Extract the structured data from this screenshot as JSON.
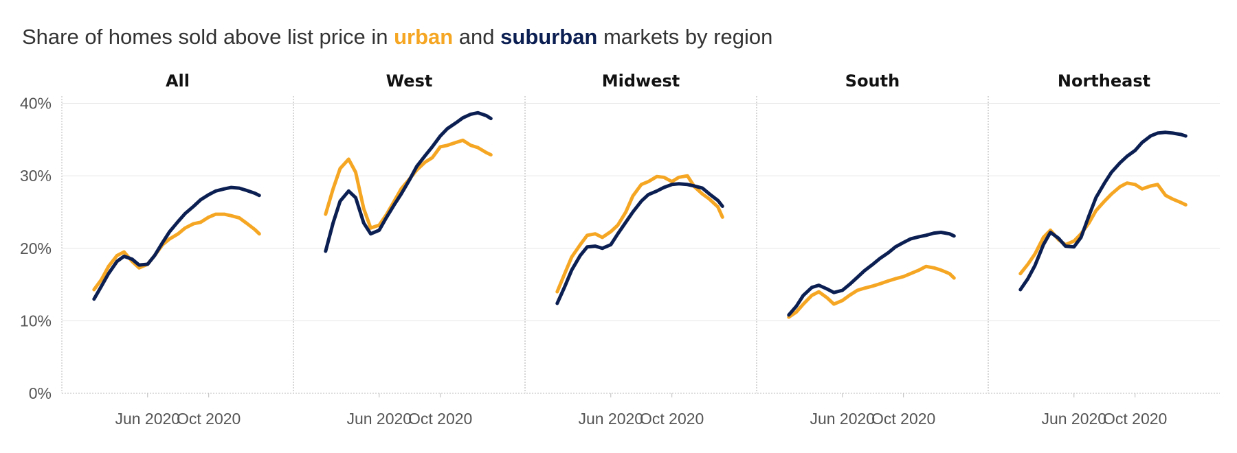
{
  "title": {
    "prefix": "Share of homes sold above list price in ",
    "urban_word": "urban",
    "middle": " and ",
    "suburban_word": "suburban",
    "suffix": " markets by region"
  },
  "colors": {
    "urban": "#f5a623",
    "suburban": "#0c1f52",
    "grid": "#e6e6e6",
    "divider": "#bbbbbb"
  },
  "chart_data": {
    "type": "line",
    "y_ticks": [
      {
        "value": 0,
        "label": "0%"
      },
      {
        "value": 10,
        "label": "10%"
      },
      {
        "value": 20,
        "label": "20%"
      },
      {
        "value": 30,
        "label": "30%"
      },
      {
        "value": 40,
        "label": "40%"
      }
    ],
    "ylim": [
      0,
      41
    ],
    "x_ticks": [
      {
        "date": "2020-06-01",
        "label": "Jun 2020"
      },
      {
        "date": "2020-10-01",
        "label": "Oct 2020"
      }
    ],
    "xlim": [
      "2020-01-01",
      "2021-02-28"
    ],
    "series_names": [
      "urban",
      "suburban"
    ],
    "panels": [
      {
        "name": "All",
        "urban": [
          [
            "2020-02-15",
            14.3
          ],
          [
            "2020-03-01",
            15.7
          ],
          [
            "2020-03-15",
            17.5
          ],
          [
            "2020-04-01",
            19.0
          ],
          [
            "2020-04-15",
            19.5
          ],
          [
            "2020-05-01",
            18.2
          ],
          [
            "2020-05-15",
            17.3
          ],
          [
            "2020-06-01",
            17.8
          ],
          [
            "2020-06-15",
            19.0
          ],
          [
            "2020-07-01",
            20.5
          ],
          [
            "2020-07-15",
            21.3
          ],
          [
            "2020-08-01",
            22.0
          ],
          [
            "2020-08-15",
            22.8
          ],
          [
            "2020-09-01",
            23.4
          ],
          [
            "2020-09-15",
            23.6
          ],
          [
            "2020-10-01",
            24.3
          ],
          [
            "2020-10-15",
            24.7
          ],
          [
            "2020-11-01",
            24.7
          ],
          [
            "2020-11-15",
            24.5
          ],
          [
            "2020-12-01",
            24.2
          ],
          [
            "2020-12-15",
            23.5
          ],
          [
            "2021-01-01",
            22.6
          ],
          [
            "2021-01-10",
            22.0
          ]
        ],
        "suburban": [
          [
            "2020-02-15",
            13.0
          ],
          [
            "2020-03-01",
            14.8
          ],
          [
            "2020-03-15",
            16.5
          ],
          [
            "2020-04-01",
            18.2
          ],
          [
            "2020-04-15",
            18.9
          ],
          [
            "2020-05-01",
            18.5
          ],
          [
            "2020-05-15",
            17.7
          ],
          [
            "2020-06-01",
            17.8
          ],
          [
            "2020-06-15",
            19.0
          ],
          [
            "2020-07-01",
            20.8
          ],
          [
            "2020-07-15",
            22.3
          ],
          [
            "2020-08-01",
            23.7
          ],
          [
            "2020-08-15",
            24.8
          ],
          [
            "2020-09-01",
            25.8
          ],
          [
            "2020-09-15",
            26.7
          ],
          [
            "2020-10-01",
            27.4
          ],
          [
            "2020-10-15",
            27.9
          ],
          [
            "2020-11-01",
            28.2
          ],
          [
            "2020-11-15",
            28.4
          ],
          [
            "2020-12-01",
            28.3
          ],
          [
            "2020-12-15",
            28.0
          ],
          [
            "2021-01-01",
            27.6
          ],
          [
            "2021-01-10",
            27.3
          ]
        ]
      },
      {
        "name": "West",
        "urban": [
          [
            "2020-02-15",
            24.7
          ],
          [
            "2020-03-01",
            28.2
          ],
          [
            "2020-03-15",
            31.0
          ],
          [
            "2020-04-01",
            32.3
          ],
          [
            "2020-04-15",
            30.5
          ],
          [
            "2020-05-01",
            25.5
          ],
          [
            "2020-05-15",
            22.8
          ],
          [
            "2020-06-01",
            23.2
          ],
          [
            "2020-06-15",
            24.6
          ],
          [
            "2020-07-01",
            26.5
          ],
          [
            "2020-07-15",
            28.2
          ],
          [
            "2020-08-01",
            29.6
          ],
          [
            "2020-08-15",
            30.8
          ],
          [
            "2020-09-01",
            31.9
          ],
          [
            "2020-09-15",
            32.5
          ],
          [
            "2020-10-01",
            34.0
          ],
          [
            "2020-10-15",
            34.2
          ],
          [
            "2020-11-01",
            34.6
          ],
          [
            "2020-11-15",
            34.9
          ],
          [
            "2020-12-01",
            34.2
          ],
          [
            "2020-12-15",
            33.9
          ],
          [
            "2021-01-01",
            33.2
          ],
          [
            "2021-01-10",
            32.9
          ]
        ],
        "suburban": [
          [
            "2020-02-15",
            19.6
          ],
          [
            "2020-03-01",
            23.5
          ],
          [
            "2020-03-15",
            26.5
          ],
          [
            "2020-04-01",
            27.9
          ],
          [
            "2020-04-15",
            27.0
          ],
          [
            "2020-05-01",
            23.5
          ],
          [
            "2020-05-15",
            22.0
          ],
          [
            "2020-06-01",
            22.5
          ],
          [
            "2020-06-15",
            24.2
          ],
          [
            "2020-07-01",
            26.0
          ],
          [
            "2020-07-15",
            27.5
          ],
          [
            "2020-08-01",
            29.5
          ],
          [
            "2020-08-15",
            31.3
          ],
          [
            "2020-09-01",
            32.8
          ],
          [
            "2020-09-15",
            34.0
          ],
          [
            "2020-10-01",
            35.5
          ],
          [
            "2020-10-15",
            36.5
          ],
          [
            "2020-11-01",
            37.3
          ],
          [
            "2020-11-15",
            38.0
          ],
          [
            "2020-12-01",
            38.5
          ],
          [
            "2020-12-15",
            38.7
          ],
          [
            "2021-01-01",
            38.3
          ],
          [
            "2021-01-10",
            37.9
          ]
        ]
      },
      {
        "name": "Midwest",
        "urban": [
          [
            "2020-02-15",
            14.0
          ],
          [
            "2020-03-01",
            16.5
          ],
          [
            "2020-03-15",
            18.8
          ],
          [
            "2020-04-01",
            20.5
          ],
          [
            "2020-04-15",
            21.8
          ],
          [
            "2020-05-01",
            22.0
          ],
          [
            "2020-05-15",
            21.5
          ],
          [
            "2020-06-01",
            22.3
          ],
          [
            "2020-06-15",
            23.2
          ],
          [
            "2020-07-01",
            25.0
          ],
          [
            "2020-07-15",
            27.2
          ],
          [
            "2020-08-01",
            28.8
          ],
          [
            "2020-08-15",
            29.2
          ],
          [
            "2020-09-01",
            29.9
          ],
          [
            "2020-09-15",
            29.8
          ],
          [
            "2020-10-01",
            29.2
          ],
          [
            "2020-10-15",
            29.8
          ],
          [
            "2020-11-01",
            30.0
          ],
          [
            "2020-11-15",
            28.5
          ],
          [
            "2020-12-01",
            27.5
          ],
          [
            "2020-12-15",
            26.8
          ],
          [
            "2021-01-01",
            25.7
          ],
          [
            "2021-01-10",
            24.3
          ]
        ],
        "suburban": [
          [
            "2020-02-15",
            12.4
          ],
          [
            "2020-03-01",
            14.7
          ],
          [
            "2020-03-15",
            17.0
          ],
          [
            "2020-04-01",
            19.0
          ],
          [
            "2020-04-15",
            20.2
          ],
          [
            "2020-05-01",
            20.3
          ],
          [
            "2020-05-15",
            20.0
          ],
          [
            "2020-06-01",
            20.5
          ],
          [
            "2020-06-15",
            22.0
          ],
          [
            "2020-07-01",
            23.6
          ],
          [
            "2020-07-15",
            25.0
          ],
          [
            "2020-08-01",
            26.5
          ],
          [
            "2020-08-15",
            27.4
          ],
          [
            "2020-09-01",
            27.9
          ],
          [
            "2020-09-15",
            28.4
          ],
          [
            "2020-10-01",
            28.8
          ],
          [
            "2020-10-15",
            28.9
          ],
          [
            "2020-11-01",
            28.8
          ],
          [
            "2020-11-15",
            28.6
          ],
          [
            "2020-12-01",
            28.3
          ],
          [
            "2020-12-15",
            27.5
          ],
          [
            "2021-01-01",
            26.6
          ],
          [
            "2021-01-10",
            25.8
          ]
        ]
      },
      {
        "name": "South",
        "urban": [
          [
            "2020-02-15",
            10.5
          ],
          [
            "2020-03-01",
            11.2
          ],
          [
            "2020-03-15",
            12.3
          ],
          [
            "2020-04-01",
            13.5
          ],
          [
            "2020-04-15",
            14.0
          ],
          [
            "2020-05-01",
            13.2
          ],
          [
            "2020-05-15",
            12.3
          ],
          [
            "2020-06-01",
            12.8
          ],
          [
            "2020-06-15",
            13.5
          ],
          [
            "2020-07-01",
            14.2
          ],
          [
            "2020-07-15",
            14.5
          ],
          [
            "2020-08-01",
            14.8
          ],
          [
            "2020-08-15",
            15.1
          ],
          [
            "2020-09-01",
            15.5
          ],
          [
            "2020-09-15",
            15.8
          ],
          [
            "2020-10-01",
            16.1
          ],
          [
            "2020-10-15",
            16.5
          ],
          [
            "2020-11-01",
            17.0
          ],
          [
            "2020-11-15",
            17.5
          ],
          [
            "2020-12-01",
            17.3
          ],
          [
            "2020-12-15",
            17.0
          ],
          [
            "2021-01-01",
            16.5
          ],
          [
            "2021-01-10",
            15.9
          ]
        ],
        "suburban": [
          [
            "2020-02-15",
            10.8
          ],
          [
            "2020-03-01",
            12.0
          ],
          [
            "2020-03-15",
            13.5
          ],
          [
            "2020-04-01",
            14.6
          ],
          [
            "2020-04-15",
            14.9
          ],
          [
            "2020-05-01",
            14.4
          ],
          [
            "2020-05-15",
            13.9
          ],
          [
            "2020-06-01",
            14.2
          ],
          [
            "2020-06-15",
            15.0
          ],
          [
            "2020-07-01",
            16.0
          ],
          [
            "2020-07-15",
            16.9
          ],
          [
            "2020-08-01",
            17.8
          ],
          [
            "2020-08-15",
            18.6
          ],
          [
            "2020-09-01",
            19.4
          ],
          [
            "2020-09-15",
            20.2
          ],
          [
            "2020-10-01",
            20.8
          ],
          [
            "2020-10-15",
            21.3
          ],
          [
            "2020-11-01",
            21.6
          ],
          [
            "2020-11-15",
            21.8
          ],
          [
            "2020-12-01",
            22.1
          ],
          [
            "2020-12-15",
            22.2
          ],
          [
            "2021-01-01",
            22.0
          ],
          [
            "2021-01-10",
            21.7
          ]
        ]
      },
      {
        "name": "Northeast",
        "urban": [
          [
            "2020-02-15",
            16.5
          ],
          [
            "2020-03-01",
            17.8
          ],
          [
            "2020-03-15",
            19.2
          ],
          [
            "2020-04-01",
            21.5
          ],
          [
            "2020-04-15",
            22.5
          ],
          [
            "2020-05-01",
            21.2
          ],
          [
            "2020-05-15",
            20.5
          ],
          [
            "2020-06-01",
            21.0
          ],
          [
            "2020-06-15",
            22.0
          ],
          [
            "2020-07-01",
            23.5
          ],
          [
            "2020-07-15",
            25.2
          ],
          [
            "2020-08-01",
            26.5
          ],
          [
            "2020-08-15",
            27.5
          ],
          [
            "2020-09-01",
            28.5
          ],
          [
            "2020-09-15",
            29.0
          ],
          [
            "2020-10-01",
            28.8
          ],
          [
            "2020-10-15",
            28.2
          ],
          [
            "2020-11-01",
            28.6
          ],
          [
            "2020-11-15",
            28.8
          ],
          [
            "2020-12-01",
            27.3
          ],
          [
            "2020-12-15",
            26.8
          ],
          [
            "2021-01-01",
            26.3
          ],
          [
            "2021-01-10",
            26.0
          ]
        ],
        "suburban": [
          [
            "2020-02-15",
            14.3
          ],
          [
            "2020-03-01",
            15.8
          ],
          [
            "2020-03-15",
            17.6
          ],
          [
            "2020-04-01",
            20.5
          ],
          [
            "2020-04-15",
            22.2
          ],
          [
            "2020-05-01",
            21.4
          ],
          [
            "2020-05-15",
            20.3
          ],
          [
            "2020-06-01",
            20.2
          ],
          [
            "2020-06-15",
            21.5
          ],
          [
            "2020-07-01",
            24.5
          ],
          [
            "2020-07-15",
            27.0
          ],
          [
            "2020-08-01",
            29.0
          ],
          [
            "2020-08-15",
            30.5
          ],
          [
            "2020-09-01",
            31.8
          ],
          [
            "2020-09-15",
            32.7
          ],
          [
            "2020-10-01",
            33.5
          ],
          [
            "2020-10-15",
            34.6
          ],
          [
            "2020-11-01",
            35.5
          ],
          [
            "2020-11-15",
            35.9
          ],
          [
            "2020-12-01",
            36.0
          ],
          [
            "2020-12-15",
            35.9
          ],
          [
            "2021-01-01",
            35.7
          ],
          [
            "2021-01-10",
            35.5
          ]
        ]
      }
    ]
  }
}
